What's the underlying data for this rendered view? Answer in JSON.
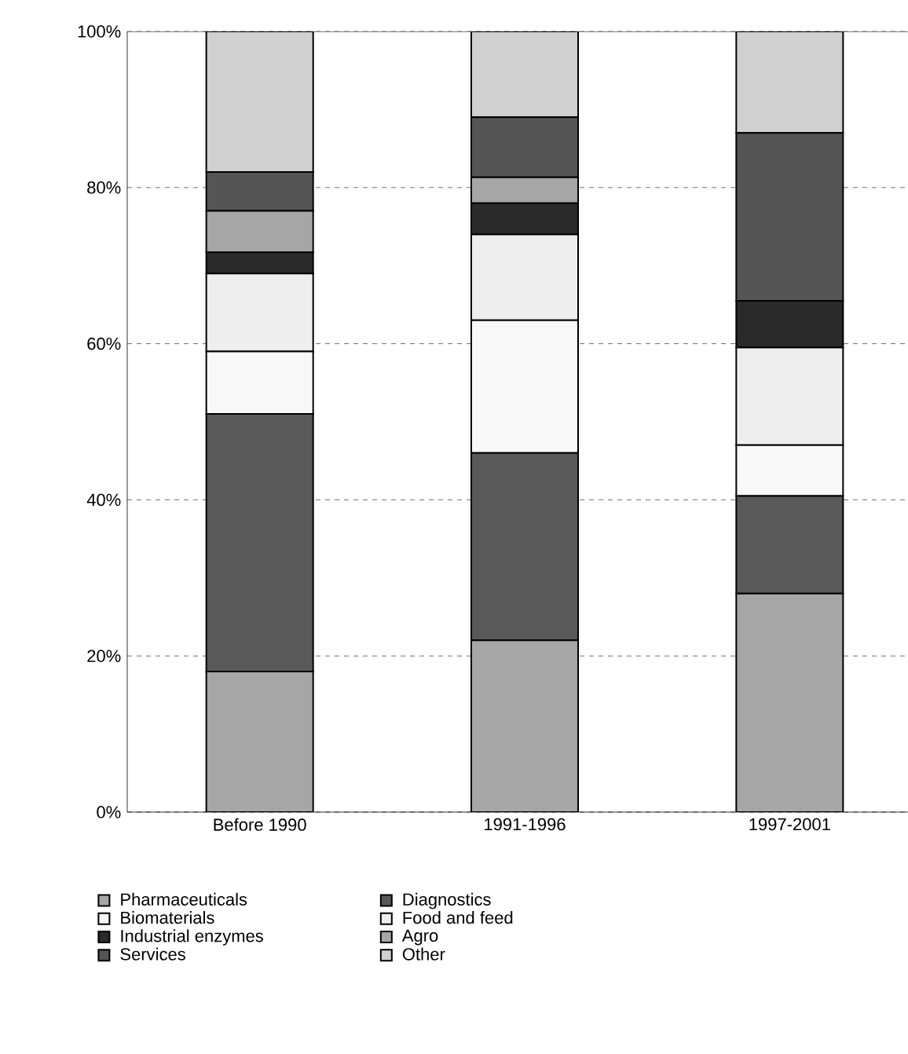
{
  "chart_data": {
    "type": "bar",
    "stacked": true,
    "categories": [
      "Before 1990",
      "1991-1996",
      "1997-2001"
    ],
    "series": [
      {
        "name": "Pharmaceuticals",
        "color": "#a6a6a6",
        "values": [
          18,
          22,
          28
        ]
      },
      {
        "name": "Diagnostics",
        "color": "#595959",
        "values": [
          33,
          24,
          12.5
        ]
      },
      {
        "name": "Biomaterials",
        "color": "#f8f8f8",
        "values": [
          8,
          17,
          6.5
        ]
      },
      {
        "name": "Food and feed",
        "color": "#eeeeee",
        "values": [
          10,
          11,
          12.5
        ]
      },
      {
        "name": "Industrial enzymes",
        "color": "#2a2a2a",
        "values": [
          2.7,
          4,
          6
        ]
      },
      {
        "name": "Agro",
        "color": "#a6a6a6",
        "values": [
          5.3,
          3.3,
          0
        ]
      },
      {
        "name": "Services",
        "color": "#555555",
        "values": [
          5,
          7.7,
          21.5
        ]
      },
      {
        "name": "Other",
        "color": "#d0d0d0",
        "values": [
          18,
          11,
          13
        ]
      }
    ],
    "ylim": [
      0,
      100
    ],
    "yticks": [
      {
        "value": 0,
        "label": "0%"
      },
      {
        "value": 20,
        "label": "20%"
      },
      {
        "value": 40,
        "label": "40%"
      },
      {
        "value": 60,
        "label": "60%"
      },
      {
        "value": 80,
        "label": "80%"
      },
      {
        "value": 100,
        "label": "100%"
      }
    ],
    "grid": "y",
    "legend": "bottom"
  }
}
